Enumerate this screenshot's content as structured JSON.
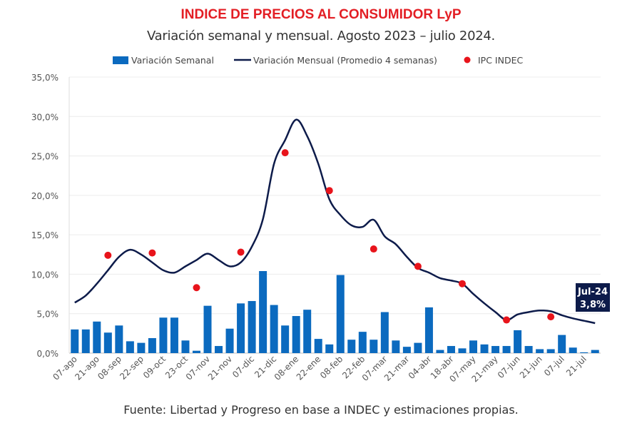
{
  "chart_data": {
    "type": "bar+line",
    "title": "INDICE DE PRECIOS AL CONSUMIDOR LyP",
    "subtitle": "Variación semanal y mensual. Agosto 2023 – julio 2024.",
    "source": "Fuente: Libertad y Progreso en base a INDEC y estimaciones propias.",
    "ylim": [
      0,
      35
    ],
    "yticks": [
      "0,0%",
      "5,0%",
      "10,0%",
      "15,0%",
      "20,0%",
      "25,0%",
      "30,0%",
      "35,0%"
    ],
    "xtick_labels": [
      "07-ago",
      "21-ago",
      "08-sep",
      "22-sep",
      "09-oct",
      "23-oct",
      "07-nov",
      "21-nov",
      "07-dic",
      "21-dic",
      "08-ene",
      "22-ene",
      "08-feb",
      "22-feb",
      "07-mar",
      "21-mar",
      "04-abr",
      "18-abr",
      "07-may",
      "21-may",
      "07-jun",
      "21-jun",
      "07-jul",
      "21-jul"
    ],
    "grid": true,
    "legend": "top",
    "series": [
      {
        "name": "Variación Semanal",
        "type": "bar",
        "color": "#0b6abf",
        "values": [
          3.0,
          3.0,
          4.0,
          2.6,
          3.5,
          1.5,
          1.3,
          1.9,
          4.5,
          4.5,
          1.6,
          0.3,
          6.0,
          0.9,
          3.1,
          6.3,
          6.6,
          10.4,
          6.1,
          3.5,
          4.7,
          5.5,
          1.8,
          1.1,
          9.9,
          1.7,
          2.7,
          1.7,
          5.2,
          1.6,
          0.8,
          1.3,
          5.8,
          0.4,
          0.9,
          0.6,
          1.6,
          1.1,
          0.9,
          0.9,
          2.9,
          0.9,
          0.5,
          0.5,
          2.3,
          0.7,
          0.1,
          0.4
        ]
      },
      {
        "name": "Variación Mensual (Promedio 4 semanas)",
        "type": "line",
        "color": "#0d1b4a",
        "values": [
          6.4,
          7.3,
          8.8,
          10.5,
          12.2,
          13.1,
          12.5,
          11.5,
          10.5,
          10.2,
          11.0,
          11.8,
          12.6,
          11.8,
          11.0,
          11.5,
          13.5,
          17.0,
          24.0,
          27.0,
          29.6,
          27.5,
          24.0,
          19.5,
          17.5,
          16.2,
          16.0,
          16.9,
          14.8,
          13.8,
          12.2,
          10.8,
          10.2,
          9.5,
          9.2,
          8.8,
          7.5,
          6.3,
          5.2,
          4.2,
          4.9,
          5.2,
          5.4,
          5.3,
          4.8,
          4.4,
          4.1,
          3.8
        ]
      },
      {
        "name": "IPC INDEC",
        "type": "scatter",
        "color": "#e8141b",
        "values": [
          null,
          null,
          null,
          12.4,
          null,
          null,
          null,
          12.7,
          null,
          null,
          null,
          8.3,
          null,
          null,
          null,
          12.8,
          null,
          null,
          null,
          25.4,
          null,
          null,
          null,
          20.6,
          null,
          null,
          null,
          13.2,
          null,
          null,
          null,
          11.0,
          null,
          null,
          null,
          8.8,
          null,
          null,
          null,
          4.2,
          null,
          null,
          null,
          4.6,
          null,
          null,
          null,
          null
        ]
      }
    ],
    "annotation": {
      "label": "Jul-24",
      "value": "3,8%",
      "color": "#0d1b4a"
    }
  }
}
